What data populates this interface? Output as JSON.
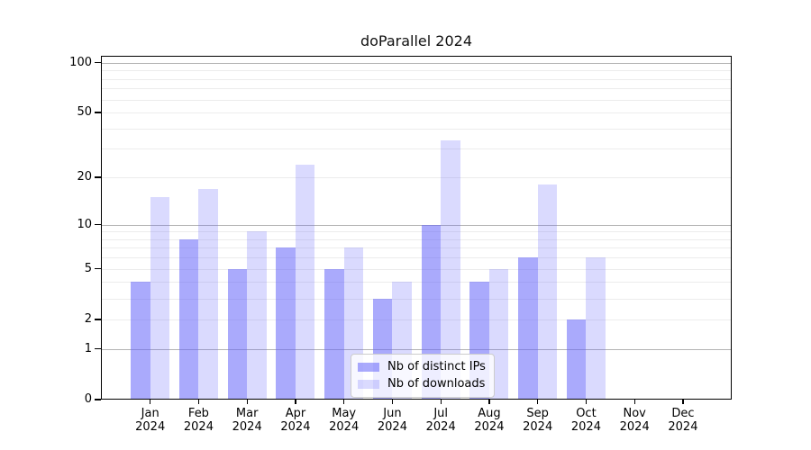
{
  "title": "doParallel 2024",
  "legend": {
    "items": [
      {
        "label": "Nb of distinct IPs",
        "color": "rgba(100,100,250,0.55)"
      },
      {
        "label": "Nb of downloads",
        "color": "rgba(100,100,250,0.24)"
      }
    ],
    "position": "lower center"
  },
  "chart_data": {
    "type": "bar",
    "title": "doParallel 2024",
    "categories": [
      "Jan 2024",
      "Feb 2024",
      "Mar 2024",
      "Apr 2024",
      "May 2024",
      "Jun 2024",
      "Jul 2024",
      "Aug 2024",
      "Sep 2024",
      "Oct 2024",
      "Nov 2024",
      "Dec 2024"
    ],
    "series": [
      {
        "name": "Nb of distinct IPs",
        "values": [
          4,
          8,
          5,
          7,
          5,
          3,
          10,
          4,
          6,
          2,
          0,
          0
        ]
      },
      {
        "name": "Nb of downloads",
        "values": [
          15,
          17,
          9,
          24,
          7,
          4,
          34,
          5,
          18,
          6,
          0,
          0
        ]
      }
    ],
    "xlabel": "",
    "ylabel": "",
    "yscale": "log1p",
    "yticks": [
      0,
      1,
      2,
      5,
      10,
      20,
      50,
      100
    ],
    "minor_grid_values": [
      2,
      3,
      4,
      5,
      6,
      7,
      8,
      9,
      20,
      30,
      40,
      50,
      60,
      70,
      80,
      90
    ],
    "major_grid_values": [
      1,
      10,
      100
    ],
    "ylim": [
      0,
      110
    ],
    "grid": true,
    "legend_position": "lower center"
  },
  "colors": {
    "bar_distinct_ips": "rgba(100,100,250,0.55)",
    "bar_downloads": "rgba(100,100,250,0.24)",
    "major_grid": "#b4b4b4",
    "minor_grid": "#ececec",
    "axis": "#000000",
    "background": "#ffffff"
  }
}
